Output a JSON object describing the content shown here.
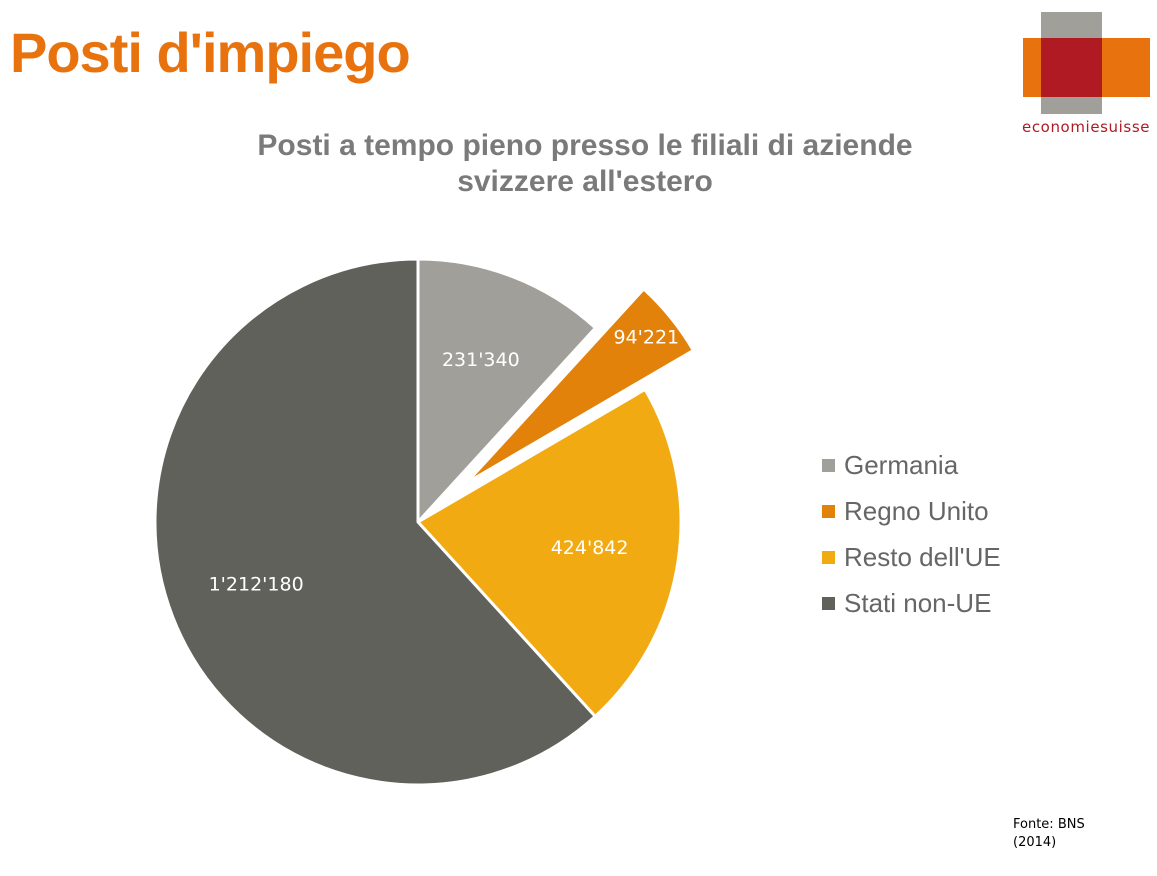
{
  "page": {
    "title": "Posti d'impiego",
    "logo_text": "economiesuisse",
    "source_line1": "Fonte: BNS",
    "source_line2": "(2014)"
  },
  "colors": {
    "title": "#E8730E",
    "logo_gray": "#A09F9A",
    "logo_orange": "#E8730E",
    "logo_red": "#B01A23"
  },
  "chart_data": {
    "type": "pie",
    "title_line1": "Posti a tempo pieno presso le filiali di aziende",
    "title_line2": "svizzere all'estero",
    "legend_position": "right",
    "slices": [
      {
        "label": "Germania",
        "value": 231340,
        "display": "231'340",
        "color": "#A09F99",
        "exploded": false
      },
      {
        "label": "Regno Unito",
        "value": 94221,
        "display": "94'221",
        "color": "#E3820B",
        "exploded": true
      },
      {
        "label": "Resto dell'UE",
        "value": 424842,
        "display": "424'842",
        "color": "#F2AA13",
        "exploded": false
      },
      {
        "label": "Stati non-UE",
        "value": 1212180,
        "display": "1'212'180",
        "color": "#61615B",
        "exploded": false
      }
    ]
  }
}
